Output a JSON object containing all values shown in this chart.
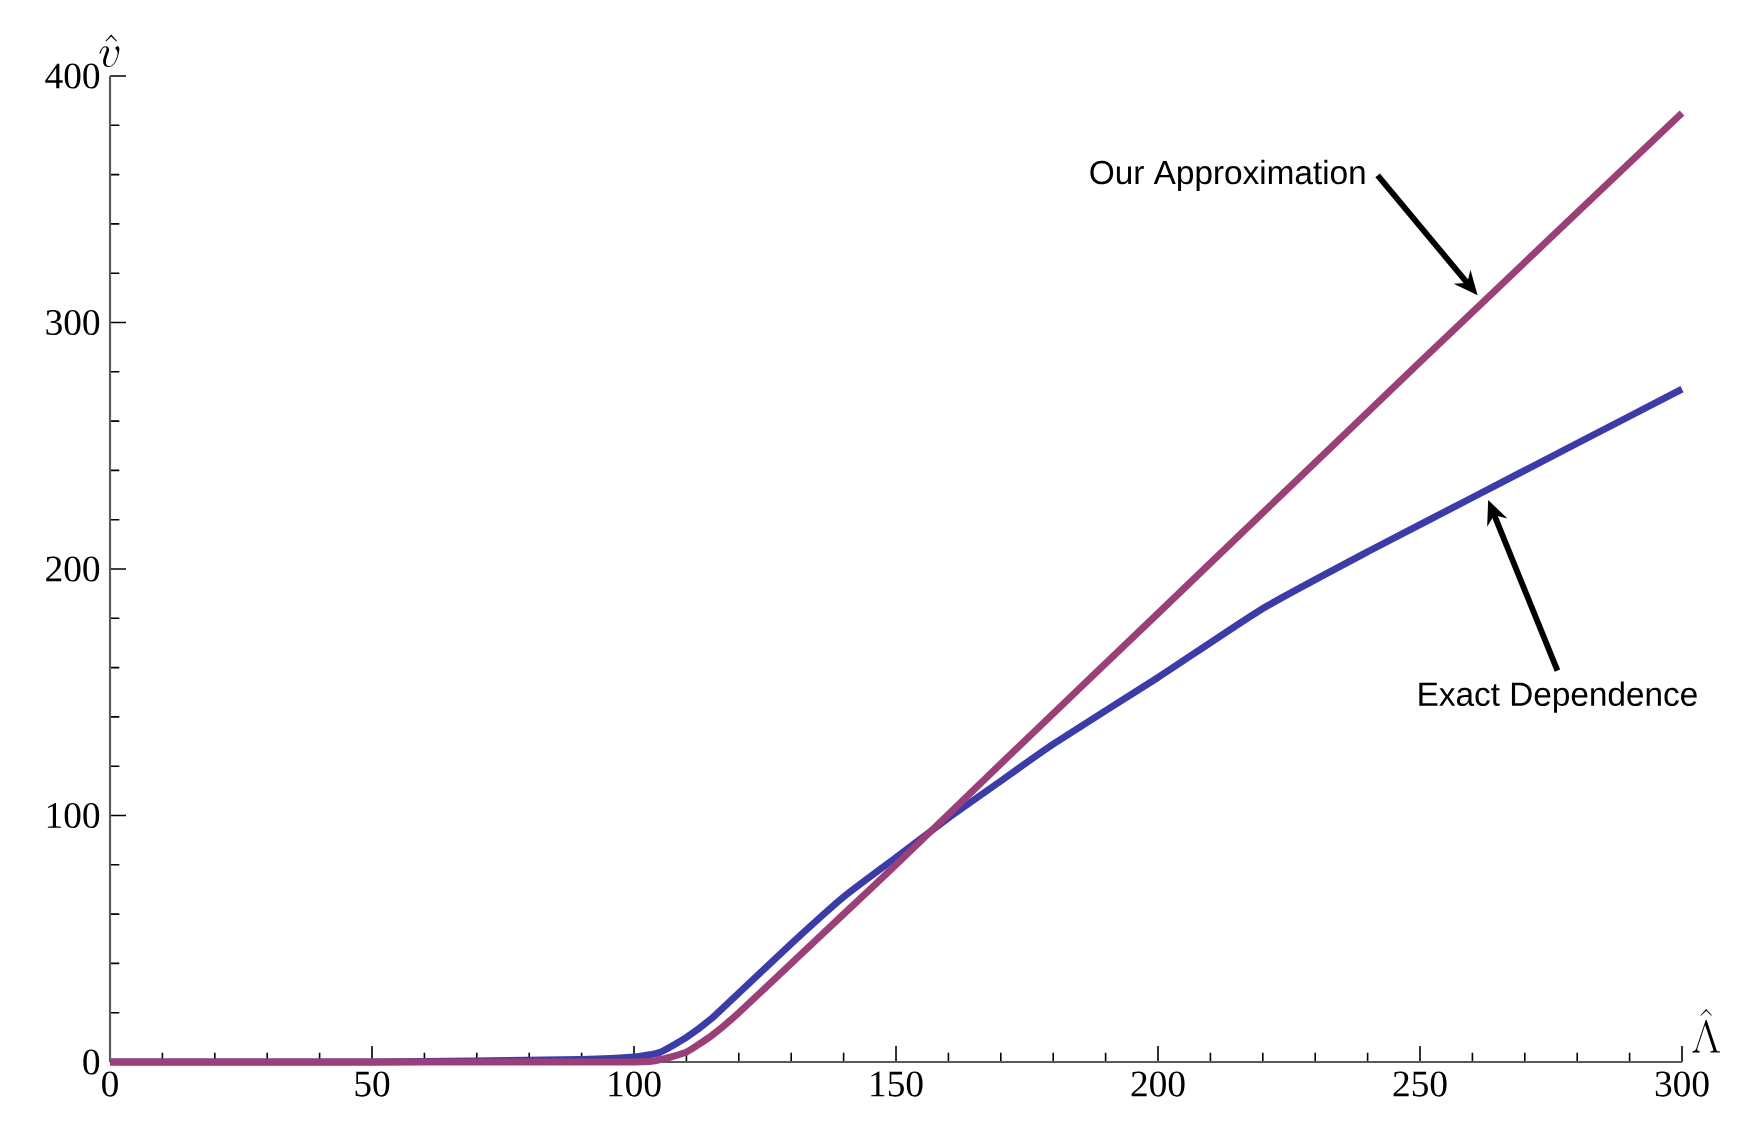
{
  "chart_data": {
    "type": "line",
    "xlabel": "\\hat{\\Lambda}",
    "ylabel": "\\hat{v}",
    "xlim": [
      0,
      300
    ],
    "ylim": [
      0,
      400
    ],
    "xticks": [
      0,
      50,
      100,
      150,
      200,
      250,
      300
    ],
    "yticks": [
      0,
      100,
      200,
      300,
      400
    ],
    "grid": false,
    "marker": "none",
    "line_style": "solid",
    "series": [
      {
        "color": "#3c3ca8",
        "x": [
          0,
          50,
          90,
          100,
          105,
          110,
          115,
          120,
          130,
          140,
          150,
          160,
          170,
          180,
          200,
          220,
          240,
          260,
          280,
          300
        ],
        "values": [
          0,
          0,
          1,
          2,
          4,
          10,
          18,
          28,
          48,
          67,
          83,
          99,
          114,
          129,
          156,
          184,
          207,
          229,
          251,
          273
        ]
      },
      {
        "color": "#9b3f78",
        "x": [
          0,
          50,
          100,
          105,
          110,
          115,
          120,
          130,
          140,
          150,
          170,
          200,
          250,
          300
        ],
        "values": [
          0,
          0,
          0,
          1,
          4,
          11,
          20,
          40,
          60,
          80,
          121,
          182,
          284,
          385
        ]
      }
    ],
    "annotations": [
      {
        "text": "Our Approximation",
        "x": 261,
        "y": 311
      },
      {
        "text": "Exact Dependence",
        "x": 263,
        "y": 228
      }
    ]
  }
}
